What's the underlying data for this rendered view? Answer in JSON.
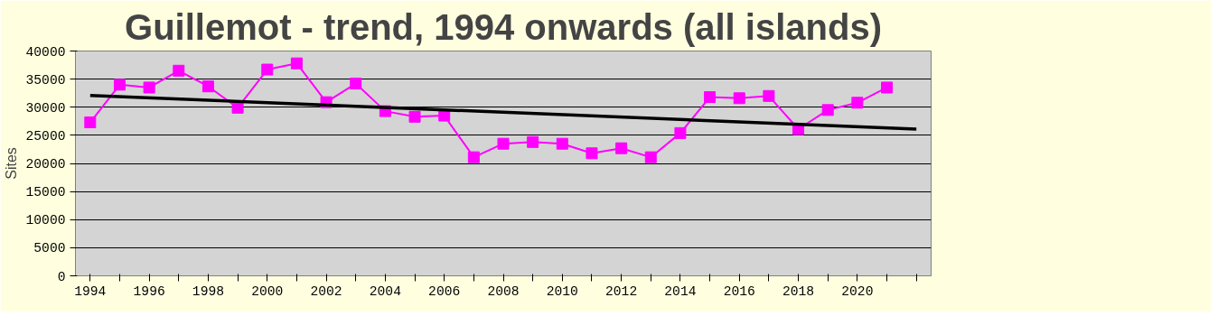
{
  "chart_data": {
    "type": "line",
    "title": "Guillemot - trend, 1994 onwards (all islands)",
    "ylabel": "Sites",
    "x": [
      1994,
      1995,
      1996,
      1997,
      1998,
      1999,
      2000,
      2001,
      2002,
      2003,
      2004,
      2005,
      2006,
      2007,
      2008,
      2009,
      2010,
      2011,
      2012,
      2013,
      2014,
      2015,
      2016,
      2017,
      2018,
      2019,
      2020,
      2021
    ],
    "series": [
      {
        "color": "#ff00ff",
        "marker": "square",
        "values": [
          27300,
          34000,
          33500,
          36500,
          33700,
          29900,
          36700,
          37800,
          30900,
          34200,
          29300,
          28300,
          28500,
          21100,
          23500,
          23800,
          23500,
          21800,
          22700,
          21100,
          25400,
          31800,
          31600,
          32000,
          26100,
          29500,
          30800,
          33500
        ]
      },
      {
        "type": "line",
        "color": "#000000",
        "marker": "none",
        "x": [
          1994,
          2022
        ],
        "values": [
          32100,
          26100
        ]
      }
    ],
    "xlim": [
      1993.5,
      2022.5
    ],
    "xticks": [
      1994,
      {
        "value": 1995,
        "label": null
      },
      1996,
      {
        "value": 1997,
        "label": null
      },
      1998,
      {
        "value": 1999,
        "label": null
      },
      2000,
      {
        "value": 2001,
        "label": null
      },
      2002,
      {
        "value": 2003,
        "label": null
      },
      2004,
      {
        "value": 2005,
        "label": null
      },
      2006,
      {
        "value": 2007,
        "label": null
      },
      2008,
      {
        "value": 2009,
        "label": null
      },
      2010,
      {
        "value": 2011,
        "label": null
      },
      2012,
      {
        "value": 2013,
        "label": null
      },
      2014,
      {
        "value": 2015,
        "label": null
      },
      2016,
      {
        "value": 2017,
        "label": null
      },
      2018,
      {
        "value": 2019,
        "label": null
      },
      2020,
      {
        "value": 2021,
        "label": null
      },
      {
        "value": 2022,
        "label": null
      }
    ],
    "ylim": [
      0,
      40000
    ],
    "yticks": [
      0,
      5000,
      10000,
      15000,
      20000,
      25000,
      30000,
      35000,
      40000
    ],
    "grid": "y",
    "line_style": "solid"
  }
}
